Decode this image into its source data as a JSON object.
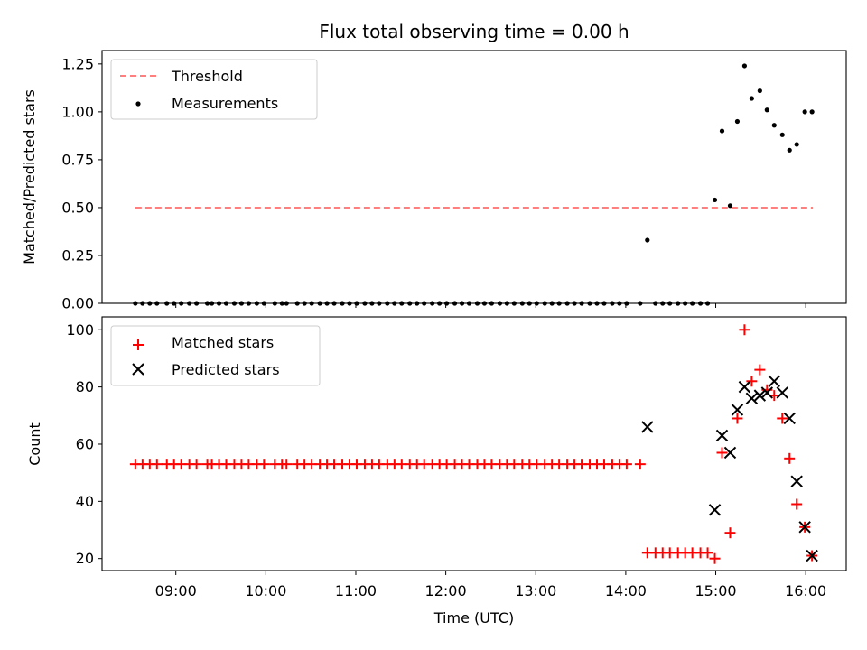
{
  "chart_data": {
    "type": "scatter",
    "title": "Flux total observing time = 0.00 h",
    "xlabel": "Time (UTC)",
    "x_ticks": [
      "09:00",
      "10:00",
      "11:00",
      "12:00",
      "13:00",
      "14:00",
      "15:00",
      "16:00"
    ],
    "x_tick_hours": [
      9,
      10,
      11,
      12,
      13,
      14,
      15,
      16
    ],
    "xlim": [
      8.18,
      16.45
    ],
    "panels": [
      {
        "ylabel": "Matched/Predicted stars",
        "ylim": [
          0,
          1.32
        ],
        "y_ticks": [
          "0.00",
          "0.25",
          "0.50",
          "0.75",
          "1.00",
          "1.25"
        ],
        "y_tick_values": [
          0,
          0.25,
          0.5,
          0.75,
          1.0,
          1.25
        ],
        "legend": [
          "Threshold",
          "Measurements"
        ],
        "threshold": {
          "name": "Threshold",
          "y": 0.5,
          "x_range": [
            8.55,
            16.08
          ],
          "color": "#ff7f7f"
        },
        "measurements": {
          "name": "Measurements",
          "color": "#000000",
          "x": [
            8.55,
            8.63,
            8.71,
            8.79,
            8.9,
            8.98,
            9.06,
            9.15,
            9.23,
            9.35,
            9.4,
            9.48,
            9.56,
            9.65,
            9.73,
            9.81,
            9.9,
            9.98,
            10.1,
            10.18,
            10.23,
            10.35,
            10.43,
            10.51,
            10.6,
            10.68,
            10.76,
            10.85,
            10.93,
            11.01,
            11.1,
            11.18,
            11.26,
            11.35,
            11.43,
            11.51,
            11.6,
            11.68,
            11.76,
            11.85,
            11.93,
            12.01,
            12.1,
            12.18,
            12.26,
            12.35,
            12.43,
            12.51,
            12.6,
            12.68,
            12.76,
            12.85,
            12.93,
            13.01,
            13.1,
            13.18,
            13.26,
            13.35,
            13.43,
            13.51,
            13.6,
            13.68,
            13.76,
            13.85,
            13.93,
            14.01,
            14.16,
            14.24,
            14.33,
            14.41,
            14.49,
            14.58,
            14.66,
            14.74,
            14.83,
            14.91,
            14.99,
            15.07,
            15.16,
            15.24,
            15.32,
            15.4,
            15.49,
            15.57,
            15.65,
            15.74,
            15.82,
            15.9,
            15.99,
            16.07
          ],
          "y": [
            0,
            0,
            0,
            0,
            0,
            0,
            0,
            0,
            0,
            0,
            0,
            0,
            0,
            0,
            0,
            0,
            0,
            0,
            0,
            0,
            0,
            0,
            0,
            0,
            0,
            0,
            0,
            0,
            0,
            0,
            0,
            0,
            0,
            0,
            0,
            0,
            0,
            0,
            0,
            0,
            0,
            0,
            0,
            0,
            0,
            0,
            0,
            0,
            0,
            0,
            0,
            0,
            0,
            0,
            0,
            0,
            0,
            0,
            0,
            0,
            0,
            0,
            0,
            0,
            0,
            0,
            0,
            0.33,
            0,
            0,
            0,
            0,
            0,
            0,
            0,
            0,
            0.54,
            0.9,
            0.51,
            0.95,
            1.24,
            1.07,
            1.11,
            1.01,
            0.93,
            0.88,
            0.8,
            0.83,
            1.0,
            1.0
          ]
        }
      },
      {
        "ylabel": "Count",
        "ylim": [
          15.8,
          104.5
        ],
        "y_ticks": [
          "20",
          "40",
          "60",
          "80",
          "100"
        ],
        "y_tick_values": [
          20,
          40,
          60,
          80,
          100
        ],
        "legend": [
          "Matched stars",
          "Predicted stars"
        ],
        "matched": {
          "name": "Matched stars",
          "color": "#ff0000",
          "x": [
            8.55,
            8.63,
            8.71,
            8.79,
            8.9,
            8.98,
            9.06,
            9.15,
            9.23,
            9.35,
            9.4,
            9.48,
            9.56,
            9.65,
            9.73,
            9.81,
            9.9,
            9.98,
            10.1,
            10.18,
            10.23,
            10.35,
            10.43,
            10.51,
            10.6,
            10.68,
            10.76,
            10.85,
            10.93,
            11.01,
            11.1,
            11.18,
            11.26,
            11.35,
            11.43,
            11.51,
            11.6,
            11.68,
            11.76,
            11.85,
            11.93,
            12.01,
            12.1,
            12.18,
            12.26,
            12.35,
            12.43,
            12.51,
            12.6,
            12.68,
            12.76,
            12.85,
            12.93,
            13.01,
            13.1,
            13.18,
            13.26,
            13.35,
            13.43,
            13.51,
            13.6,
            13.68,
            13.76,
            13.85,
            13.93,
            14.01,
            14.16,
            14.24,
            14.33,
            14.41,
            14.49,
            14.58,
            14.66,
            14.74,
            14.83,
            14.91,
            14.99,
            15.07,
            15.16,
            15.24,
            15.32,
            15.4,
            15.49,
            15.57,
            15.65,
            15.74,
            15.82,
            15.9,
            15.99,
            16.07
          ],
          "y": [
            53,
            53,
            53,
            53,
            53,
            53,
            53,
            53,
            53,
            53,
            53,
            53,
            53,
            53,
            53,
            53,
            53,
            53,
            53,
            53,
            53,
            53,
            53,
            53,
            53,
            53,
            53,
            53,
            53,
            53,
            53,
            53,
            53,
            53,
            53,
            53,
            53,
            53,
            53,
            53,
            53,
            53,
            53,
            53,
            53,
            53,
            53,
            53,
            53,
            53,
            53,
            53,
            53,
            53,
            53,
            53,
            53,
            53,
            53,
            53,
            53,
            53,
            53,
            53,
            53,
            53,
            53,
            22,
            22,
            22,
            22,
            22,
            22,
            22,
            22,
            22,
            20,
            57,
            29,
            69,
            100,
            82,
            86,
            79,
            77,
            69,
            55,
            39,
            31,
            21
          ]
        },
        "predicted": {
          "name": "Predicted stars",
          "color": "#000000",
          "x": [
            14.24,
            14.99,
            15.07,
            15.16,
            15.24,
            15.32,
            15.4,
            15.49,
            15.57,
            15.65,
            15.74,
            15.82,
            15.9,
            15.99,
            16.07
          ],
          "y": [
            66,
            37,
            63,
            57,
            72,
            80,
            76,
            77,
            78,
            82,
            78,
            69,
            47,
            31,
            21
          ]
        }
      }
    ]
  }
}
